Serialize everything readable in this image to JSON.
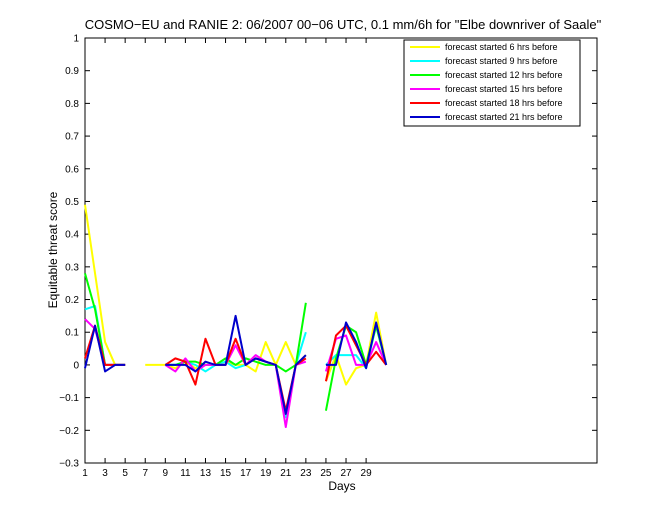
{
  "chart_data": {
    "type": "line",
    "title": "COSMO−EU and RANIE 2: 06/2007 00−06 UTC, 0.1 mm/6h for \"Elbe downriver of Saale\"",
    "xlabel": "Days",
    "ylabel": "Equitable threat score",
    "xlim": [
      1,
      52
    ],
    "ylim": [
      -0.3,
      1
    ],
    "xticks": [
      1,
      3,
      5,
      7,
      9,
      11,
      13,
      15,
      17,
      19,
      21,
      23,
      25,
      27,
      29
    ],
    "yticks": [
      -0.3,
      -0.2,
      -0.1,
      0,
      0.1,
      0.2,
      0.3,
      0.4,
      0.5,
      0.6,
      0.7,
      0.8,
      0.9,
      1
    ],
    "ytick_labels": [
      "−0.3",
      "−0.2",
      "−0.1",
      "0",
      "0.1",
      "0.2",
      "0.3",
      "0.4",
      "0.5",
      "0.6",
      "0.7",
      "0.8",
      "0.9",
      "1"
    ],
    "grid": false,
    "legend_position": "top-right",
    "x": [
      1,
      2,
      3,
      4,
      5,
      6,
      7,
      8,
      9,
      10,
      11,
      12,
      13,
      14,
      15,
      16,
      17,
      18,
      19,
      20,
      21,
      22,
      23,
      24,
      25,
      26,
      27,
      28,
      29,
      30,
      31
    ],
    "series": [
      {
        "name": "forecast started 6 hrs before",
        "color": "#ffff00",
        "values": [
          0.49,
          0.28,
          0.07,
          0,
          0,
          null,
          0,
          0,
          0,
          -0.01,
          0.01,
          -0.01,
          0,
          0,
          0.01,
          0,
          0,
          -0.02,
          0.07,
          0,
          0.07,
          0,
          0.03,
          null,
          -0.05,
          0.03,
          -0.06,
          -0.01,
          0,
          0.16,
          0
        ]
      },
      {
        "name": "forecast started 9 hrs before",
        "color": "#00ffff",
        "values": [
          0.17,
          0.18,
          0,
          0,
          0,
          null,
          null,
          null,
          0,
          0,
          0.01,
          0,
          -0.02,
          0,
          0.01,
          -0.01,
          0,
          0.02,
          0.01,
          0,
          -0.16,
          0,
          0.1,
          null,
          0,
          0.03,
          0.03,
          0.03,
          -0.01,
          0.12,
          0
        ]
      },
      {
        "name": "forecast started 12 hrs before",
        "color": "#00ff00",
        "values": [
          0.28,
          0.17,
          0,
          0,
          0,
          null,
          null,
          null,
          0,
          0,
          0.01,
          0.01,
          0,
          0,
          0.02,
          0,
          0.02,
          0.01,
          0,
          0,
          -0.02,
          0,
          0.19,
          null,
          -0.14,
          0.02,
          0.12,
          0.1,
          0,
          0.12,
          0
        ]
      },
      {
        "name": "forecast started 15 hrs before",
        "color": "#ff00ff",
        "values": [
          0.14,
          0.11,
          0,
          0,
          0,
          null,
          null,
          null,
          0,
          -0.02,
          0.02,
          -0.02,
          0,
          0,
          0,
          0.06,
          0,
          0.03,
          0.01,
          0,
          -0.19,
          0,
          0.01,
          null,
          -0.02,
          0.08,
          0.09,
          0,
          0,
          0.07,
          0
        ]
      },
      {
        "name": "forecast started 18 hrs before",
        "color": "#ff0000",
        "values": [
          0.02,
          0.12,
          0,
          0,
          0,
          null,
          null,
          null,
          0,
          0.02,
          0.01,
          -0.06,
          0.08,
          0,
          0,
          0.08,
          0,
          0.02,
          0.01,
          0,
          -0.14,
          0,
          0.02,
          null,
          -0.05,
          0.09,
          0.12,
          0.06,
          0,
          0.04,
          0
        ]
      },
      {
        "name": "forecast started 21 hrs before",
        "color": "#0000cc",
        "values": [
          -0.01,
          0.12,
          -0.02,
          0,
          0,
          null,
          null,
          null,
          0,
          0,
          0,
          -0.02,
          0.01,
          0,
          0,
          0.15,
          0,
          0.02,
          0.01,
          0,
          -0.15,
          0,
          0.03,
          null,
          0,
          0,
          0.13,
          0.07,
          -0.01,
          0.13,
          0
        ]
      }
    ]
  }
}
